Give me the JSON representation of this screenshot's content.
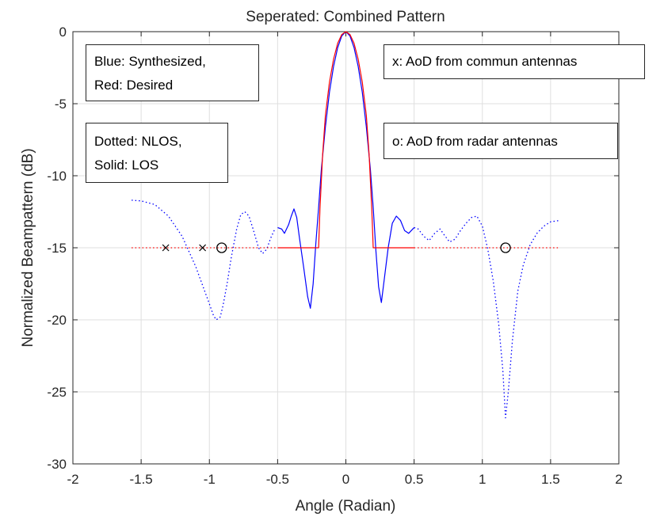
{
  "chart_data": {
    "type": "line",
    "title": "Seperated: Combined Pattern",
    "xlabel": "Angle (Radian)",
    "ylabel": "Normalized Beampattern (dB)",
    "xlim": [
      -2,
      2
    ],
    "ylim": [
      -30,
      0
    ],
    "xticks": [
      -2,
      -1.5,
      -1,
      -0.5,
      0,
      0.5,
      1,
      1.5,
      2
    ],
    "xtick_labels": [
      "-2",
      "-1.5",
      "-1",
      "-0.5",
      "0",
      "0.5",
      "1",
      "1.5",
      "2"
    ],
    "yticks": [
      0,
      -5,
      -10,
      -15,
      -20,
      -25,
      -30
    ],
    "ytick_labels": [
      "0",
      "-5",
      "-10",
      "-15",
      "-20",
      "-25",
      "-30"
    ],
    "grid": true,
    "colors": {
      "synthesized": "#0000ff",
      "desired": "#ff0000",
      "markers": "#000000"
    },
    "series": [
      {
        "role": "synthesized-nlos",
        "style": "dotted",
        "color": "#0000ff",
        "points": [
          [
            -1.57,
            -11.7
          ],
          [
            -1.5,
            -11.75
          ],
          [
            -1.4,
            -12.0
          ],
          [
            -1.3,
            -12.8
          ],
          [
            -1.2,
            -14.2
          ],
          [
            -1.1,
            -16.3
          ],
          [
            -1.05,
            -17.6
          ],
          [
            -1.0,
            -18.9
          ],
          [
            -0.97,
            -19.7
          ],
          [
            -0.95,
            -20.0
          ],
          [
            -0.92,
            -19.8
          ],
          [
            -0.9,
            -19.0
          ],
          [
            -0.87,
            -17.5
          ],
          [
            -0.84,
            -15.7
          ],
          [
            -0.8,
            -13.7
          ],
          [
            -0.77,
            -12.7
          ],
          [
            -0.74,
            -12.5
          ],
          [
            -0.71,
            -12.8
          ],
          [
            -0.68,
            -13.7
          ],
          [
            -0.64,
            -15.0
          ],
          [
            -0.61,
            -15.4
          ],
          [
            -0.58,
            -15.1
          ],
          [
            -0.55,
            -14.3
          ],
          [
            -0.52,
            -13.7
          ]
        ]
      },
      {
        "role": "synthesized-los",
        "style": "solid",
        "color": "#0000ff",
        "points": [
          [
            -0.5,
            -13.6
          ],
          [
            -0.47,
            -13.7
          ],
          [
            -0.45,
            -14.0
          ],
          [
            -0.42,
            -13.4
          ],
          [
            -0.4,
            -12.8
          ],
          [
            -0.38,
            -12.3
          ],
          [
            -0.36,
            -12.9
          ],
          [
            -0.34,
            -14.3
          ],
          [
            -0.31,
            -16.3
          ],
          [
            -0.28,
            -18.4
          ],
          [
            -0.26,
            -19.2
          ],
          [
            -0.24,
            -17.5
          ],
          [
            -0.22,
            -14.7
          ],
          [
            -0.2,
            -12.2
          ],
          [
            -0.18,
            -9.6
          ],
          [
            -0.15,
            -6.6
          ],
          [
            -0.12,
            -4.2
          ],
          [
            -0.09,
            -2.4
          ],
          [
            -0.06,
            -1.1
          ],
          [
            -0.03,
            -0.3
          ],
          [
            0,
            0
          ],
          [
            0.03,
            -0.3
          ],
          [
            0.06,
            -1.1
          ],
          [
            0.09,
            -2.4
          ],
          [
            0.12,
            -4.2
          ],
          [
            0.15,
            -6.6
          ],
          [
            0.18,
            -9.6
          ],
          [
            0.2,
            -12.2
          ],
          [
            0.22,
            -15.2
          ],
          [
            0.24,
            -17.7
          ],
          [
            0.26,
            -18.8
          ],
          [
            0.28,
            -17.3
          ],
          [
            0.31,
            -15.0
          ],
          [
            0.34,
            -13.3
          ],
          [
            0.37,
            -12.8
          ],
          [
            0.4,
            -13.1
          ],
          [
            0.43,
            -13.8
          ],
          [
            0.46,
            -14.0
          ],
          [
            0.49,
            -13.7
          ],
          [
            0.5,
            -13.6
          ]
        ]
      },
      {
        "role": "synthesized-nlos",
        "style": "dotted",
        "color": "#0000ff",
        "points": [
          [
            0.5,
            -13.6
          ],
          [
            0.53,
            -13.7
          ],
          [
            0.57,
            -14.2
          ],
          [
            0.61,
            -14.5
          ],
          [
            0.65,
            -14.0
          ],
          [
            0.69,
            -13.7
          ],
          [
            0.72,
            -14.1
          ],
          [
            0.76,
            -14.6
          ],
          [
            0.8,
            -14.4
          ],
          [
            0.84,
            -13.8
          ],
          [
            0.88,
            -13.3
          ],
          [
            0.92,
            -12.9
          ],
          [
            0.96,
            -12.8
          ],
          [
            1.0,
            -13.5
          ],
          [
            1.04,
            -15.1
          ],
          [
            1.08,
            -17.3
          ],
          [
            1.12,
            -20.3
          ],
          [
            1.15,
            -23.5
          ],
          [
            1.17,
            -26.8
          ],
          [
            1.19,
            -25.0
          ],
          [
            1.22,
            -21.5
          ],
          [
            1.26,
            -18.0
          ],
          [
            1.3,
            -16.2
          ],
          [
            1.35,
            -14.8
          ],
          [
            1.4,
            -14.0
          ],
          [
            1.45,
            -13.5
          ],
          [
            1.5,
            -13.2
          ],
          [
            1.57,
            -13.1
          ]
        ]
      },
      {
        "role": "desired-nlos",
        "style": "dotted",
        "color": "#ff0000",
        "points": [
          [
            -1.57,
            -15
          ],
          [
            -0.5,
            -15
          ]
        ]
      },
      {
        "role": "desired-los",
        "style": "solid",
        "color": "#ff0000",
        "points": [
          [
            -0.5,
            -15
          ],
          [
            -0.2,
            -15
          ],
          [
            -0.19,
            -12.3
          ],
          [
            -0.17,
            -8.5
          ],
          [
            -0.15,
            -5.8
          ],
          [
            -0.12,
            -3.5
          ],
          [
            -0.09,
            -1.9
          ],
          [
            -0.06,
            -0.8
          ],
          [
            -0.03,
            -0.2
          ],
          [
            0,
            0
          ],
          [
            0.03,
            -0.2
          ],
          [
            0.06,
            -0.8
          ],
          [
            0.09,
            -1.9
          ],
          [
            0.12,
            -3.5
          ],
          [
            0.15,
            -5.8
          ],
          [
            0.17,
            -8.5
          ],
          [
            0.19,
            -12.3
          ],
          [
            0.2,
            -15
          ],
          [
            0.5,
            -15
          ]
        ]
      },
      {
        "role": "desired-nlos",
        "style": "dotted",
        "color": "#ff0000",
        "points": [
          [
            0.5,
            -15
          ],
          [
            1.57,
            -15
          ]
        ]
      }
    ],
    "markers": [
      {
        "symbol": "x",
        "x": -1.32,
        "y": -15,
        "meaning": "AoD from commun antennas"
      },
      {
        "symbol": "x",
        "x": -1.05,
        "y": -15,
        "meaning": "AoD from commun antennas"
      },
      {
        "symbol": "o",
        "x": -0.91,
        "y": -15,
        "meaning": "AoD from radar antennas"
      },
      {
        "symbol": "o",
        "x": 1.17,
        "y": -15,
        "meaning": "AoD from radar antennas"
      }
    ],
    "annotations": {
      "color_note": [
        "Blue: Synthesized,",
        "Red: Desired"
      ],
      "style_note": [
        "Dotted: NLOS,",
        "Solid: LOS"
      ],
      "x_marker_note": "x: AoD from commun antennas",
      "o_marker_note": "o: AoD from radar antennas"
    }
  }
}
